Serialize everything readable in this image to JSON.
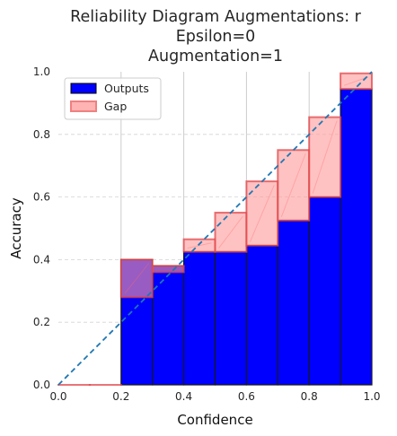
{
  "chart_data": {
    "type": "bar",
    "title_lines": [
      "Reliability Diagram Augmentations: r",
      "Epsilon=0",
      "Augmentation=1"
    ],
    "xlabel": "Confidence",
    "ylabel": "Accuracy",
    "xlim": [
      0.0,
      1.0
    ],
    "ylim": [
      0.0,
      1.0
    ],
    "xticks": [
      "0.0",
      "0.2",
      "0.4",
      "0.6",
      "0.8",
      "1.0"
    ],
    "yticks": [
      "0.0",
      "0.2",
      "0.4",
      "0.6",
      "0.8",
      "1.0"
    ],
    "bin_edges": [
      0.0,
      0.1,
      0.2,
      0.3,
      0.4,
      0.5,
      0.6,
      0.7,
      0.8,
      0.9,
      1.0
    ],
    "series": [
      {
        "name": "Outputs",
        "color": "#0000ff",
        "values": [
          0.0,
          0.0,
          0.4,
          0.38,
          0.425,
          0.425,
          0.445,
          0.525,
          0.6,
          0.945
        ]
      },
      {
        "name": "Gap",
        "color": "#ff9999",
        "edge_color": "#e0454a",
        "gap_from": [
          0.0,
          0.0,
          0.28,
          0.36,
          0.465,
          0.55,
          0.65,
          0.75,
          0.855,
          0.995
        ]
      }
    ],
    "reference_line": {
      "from": [
        0,
        0
      ],
      "to": [
        1,
        1
      ],
      "style": "dashed",
      "color": "#1f77b4"
    },
    "grid": true,
    "legend_position": "top-left"
  }
}
